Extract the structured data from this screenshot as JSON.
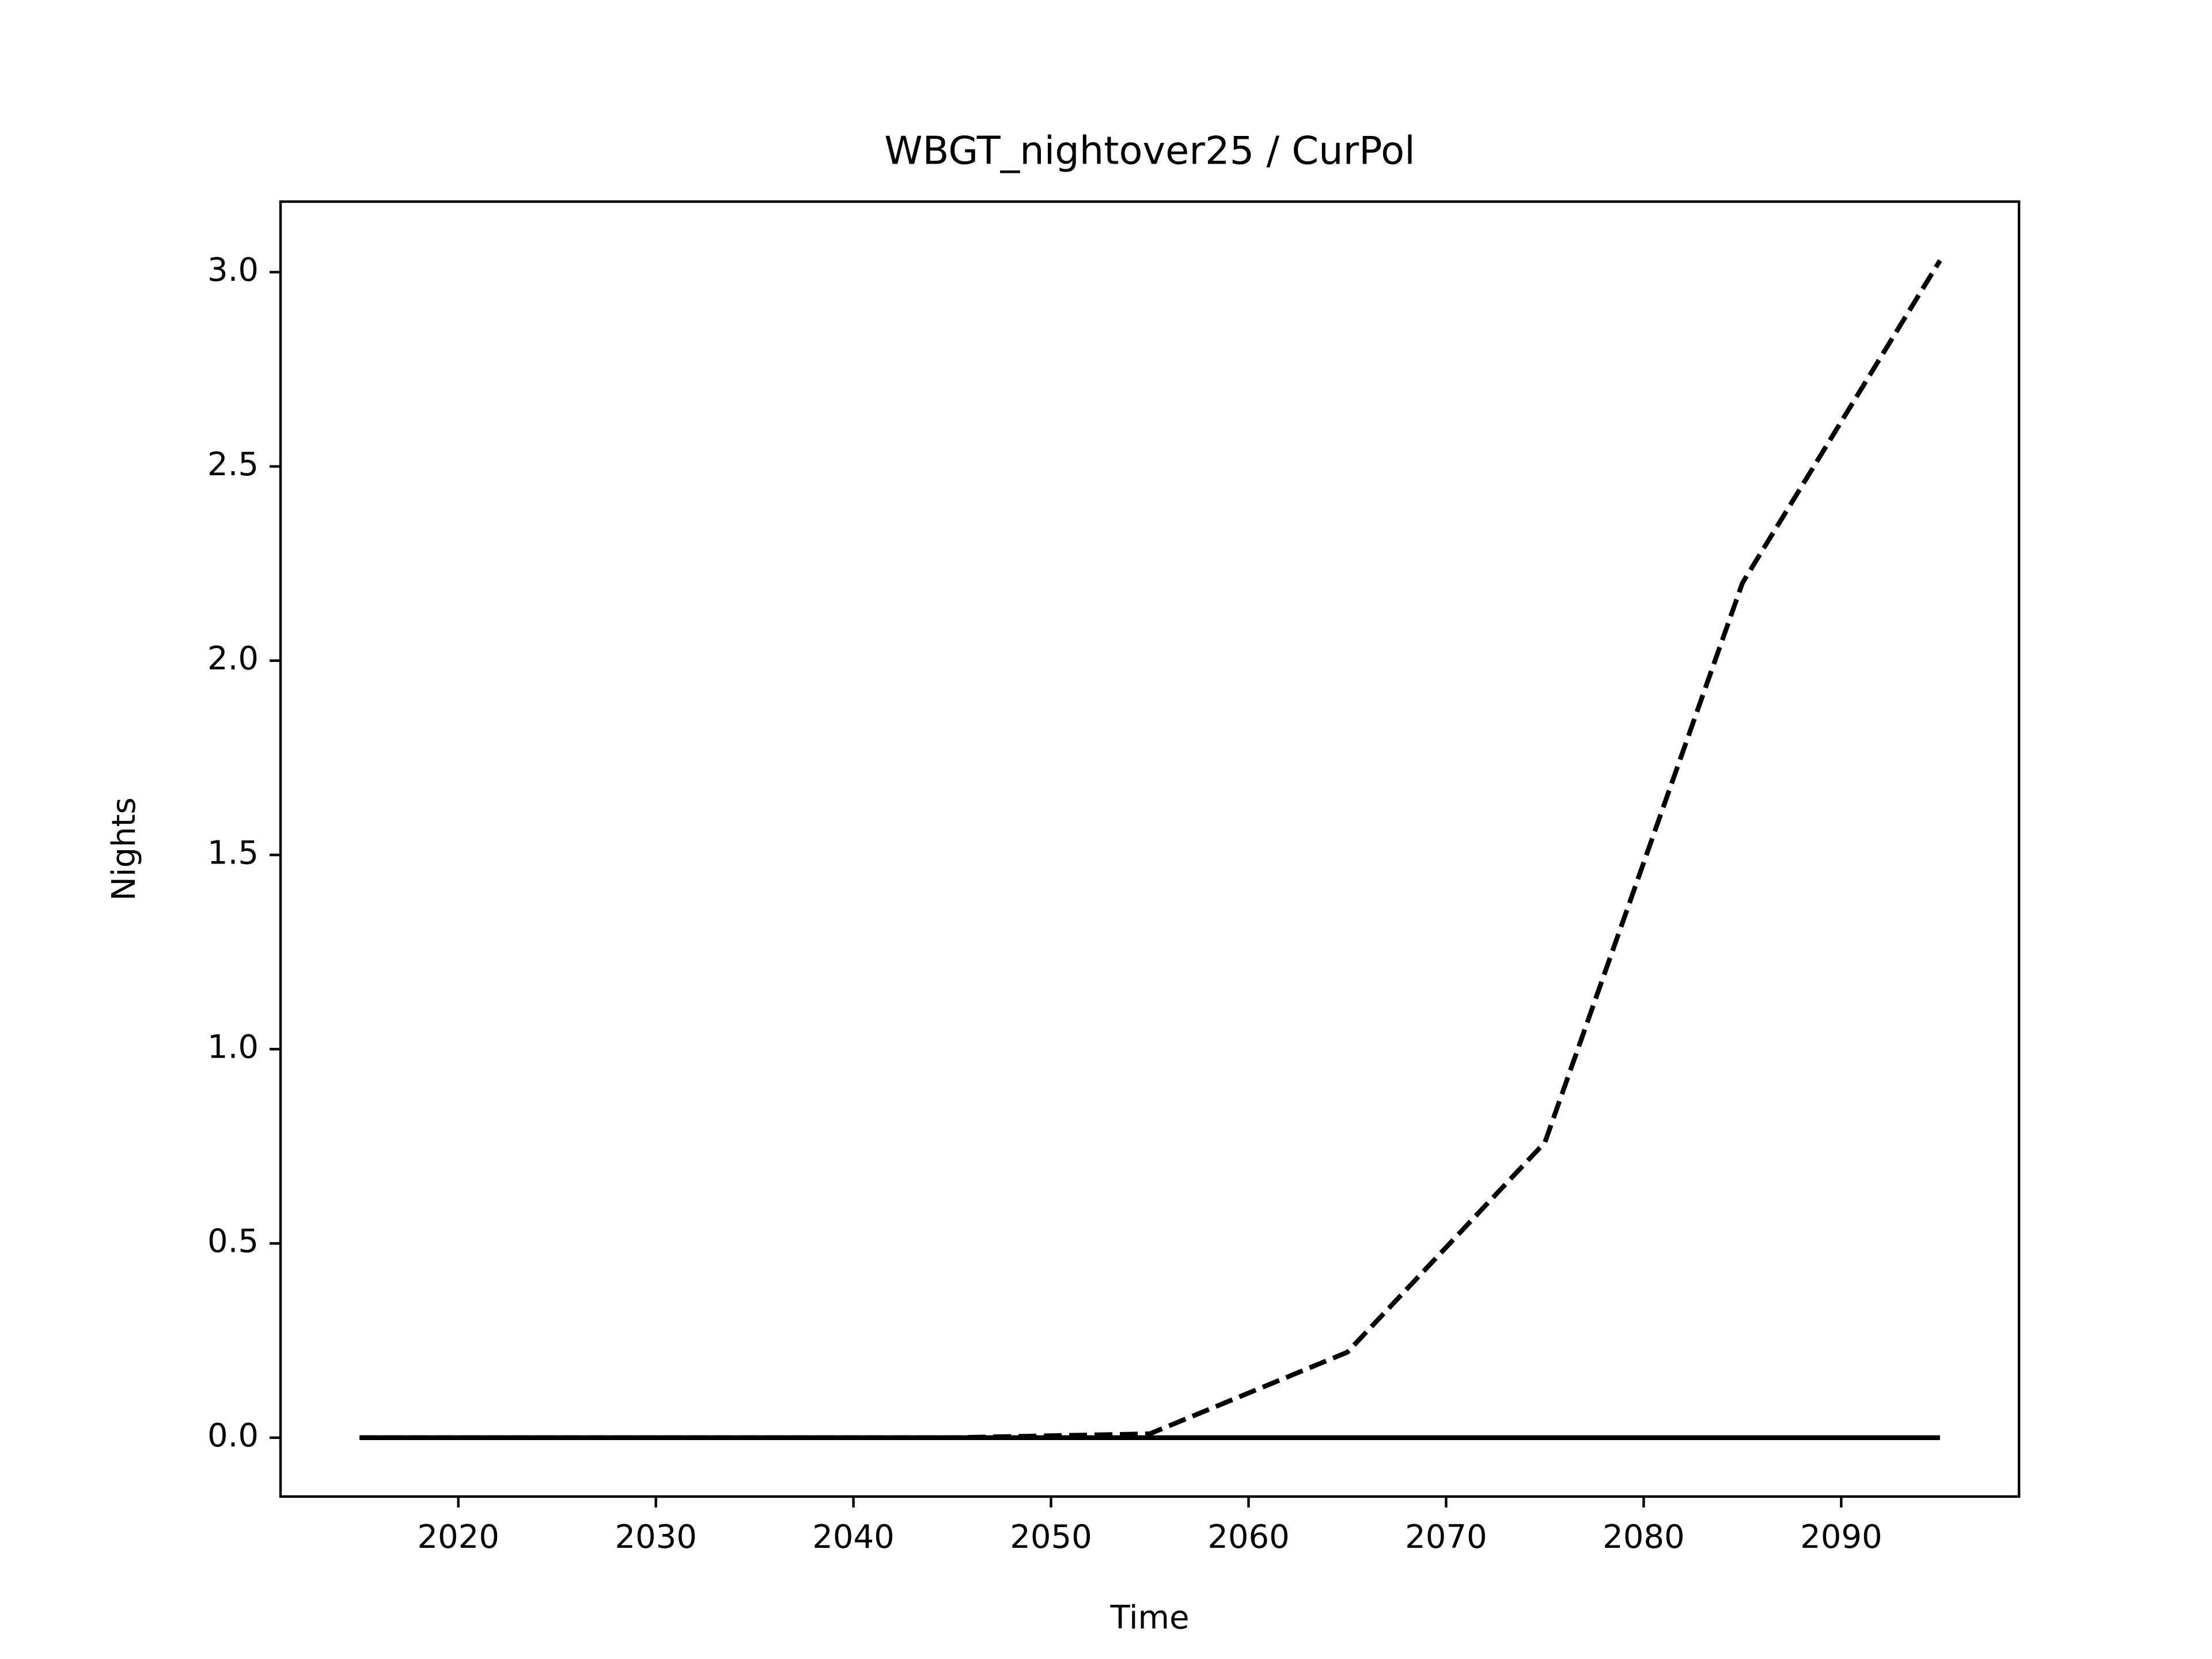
{
  "chart_data": {
    "type": "line",
    "title": "WBGT_nightover25 / CurPol",
    "x_label": "Time",
    "y_label": "Nights",
    "x": [
      2015,
      2025,
      2035,
      2045,
      2055,
      2065,
      2075,
      2085,
      2095
    ],
    "series": [
      {
        "color": "#000000",
        "linestyle": "dashed",
        "values": [
          0,
          0,
          0,
          0,
          0.01,
          0.22,
          0.76,
          2.2,
          3.03
        ]
      },
      {
        "color": "#000000",
        "linestyle": "solid",
        "values": [
          0,
          0,
          0,
          0,
          0,
          0,
          0,
          0,
          0
        ]
      }
    ],
    "xlim": [
      2011,
      2099
    ],
    "xticks": [
      2020,
      2030,
      2040,
      2050,
      2060,
      2070,
      2080,
      2090
    ],
    "ylim": [
      -0.1515,
      3.1815
    ],
    "yticks": [
      {
        "value": 0,
        "label": "0.0"
      },
      {
        "value": 0.5,
        "label": "0.5"
      },
      {
        "value": 1,
        "label": "1.0"
      },
      {
        "value": 1.5,
        "label": "1.5"
      },
      {
        "value": 2,
        "label": "2.0"
      },
      {
        "value": 2.5,
        "label": "2.5"
      },
      {
        "value": 3,
        "label": "3.0"
      }
    ],
    "grid": false
  }
}
